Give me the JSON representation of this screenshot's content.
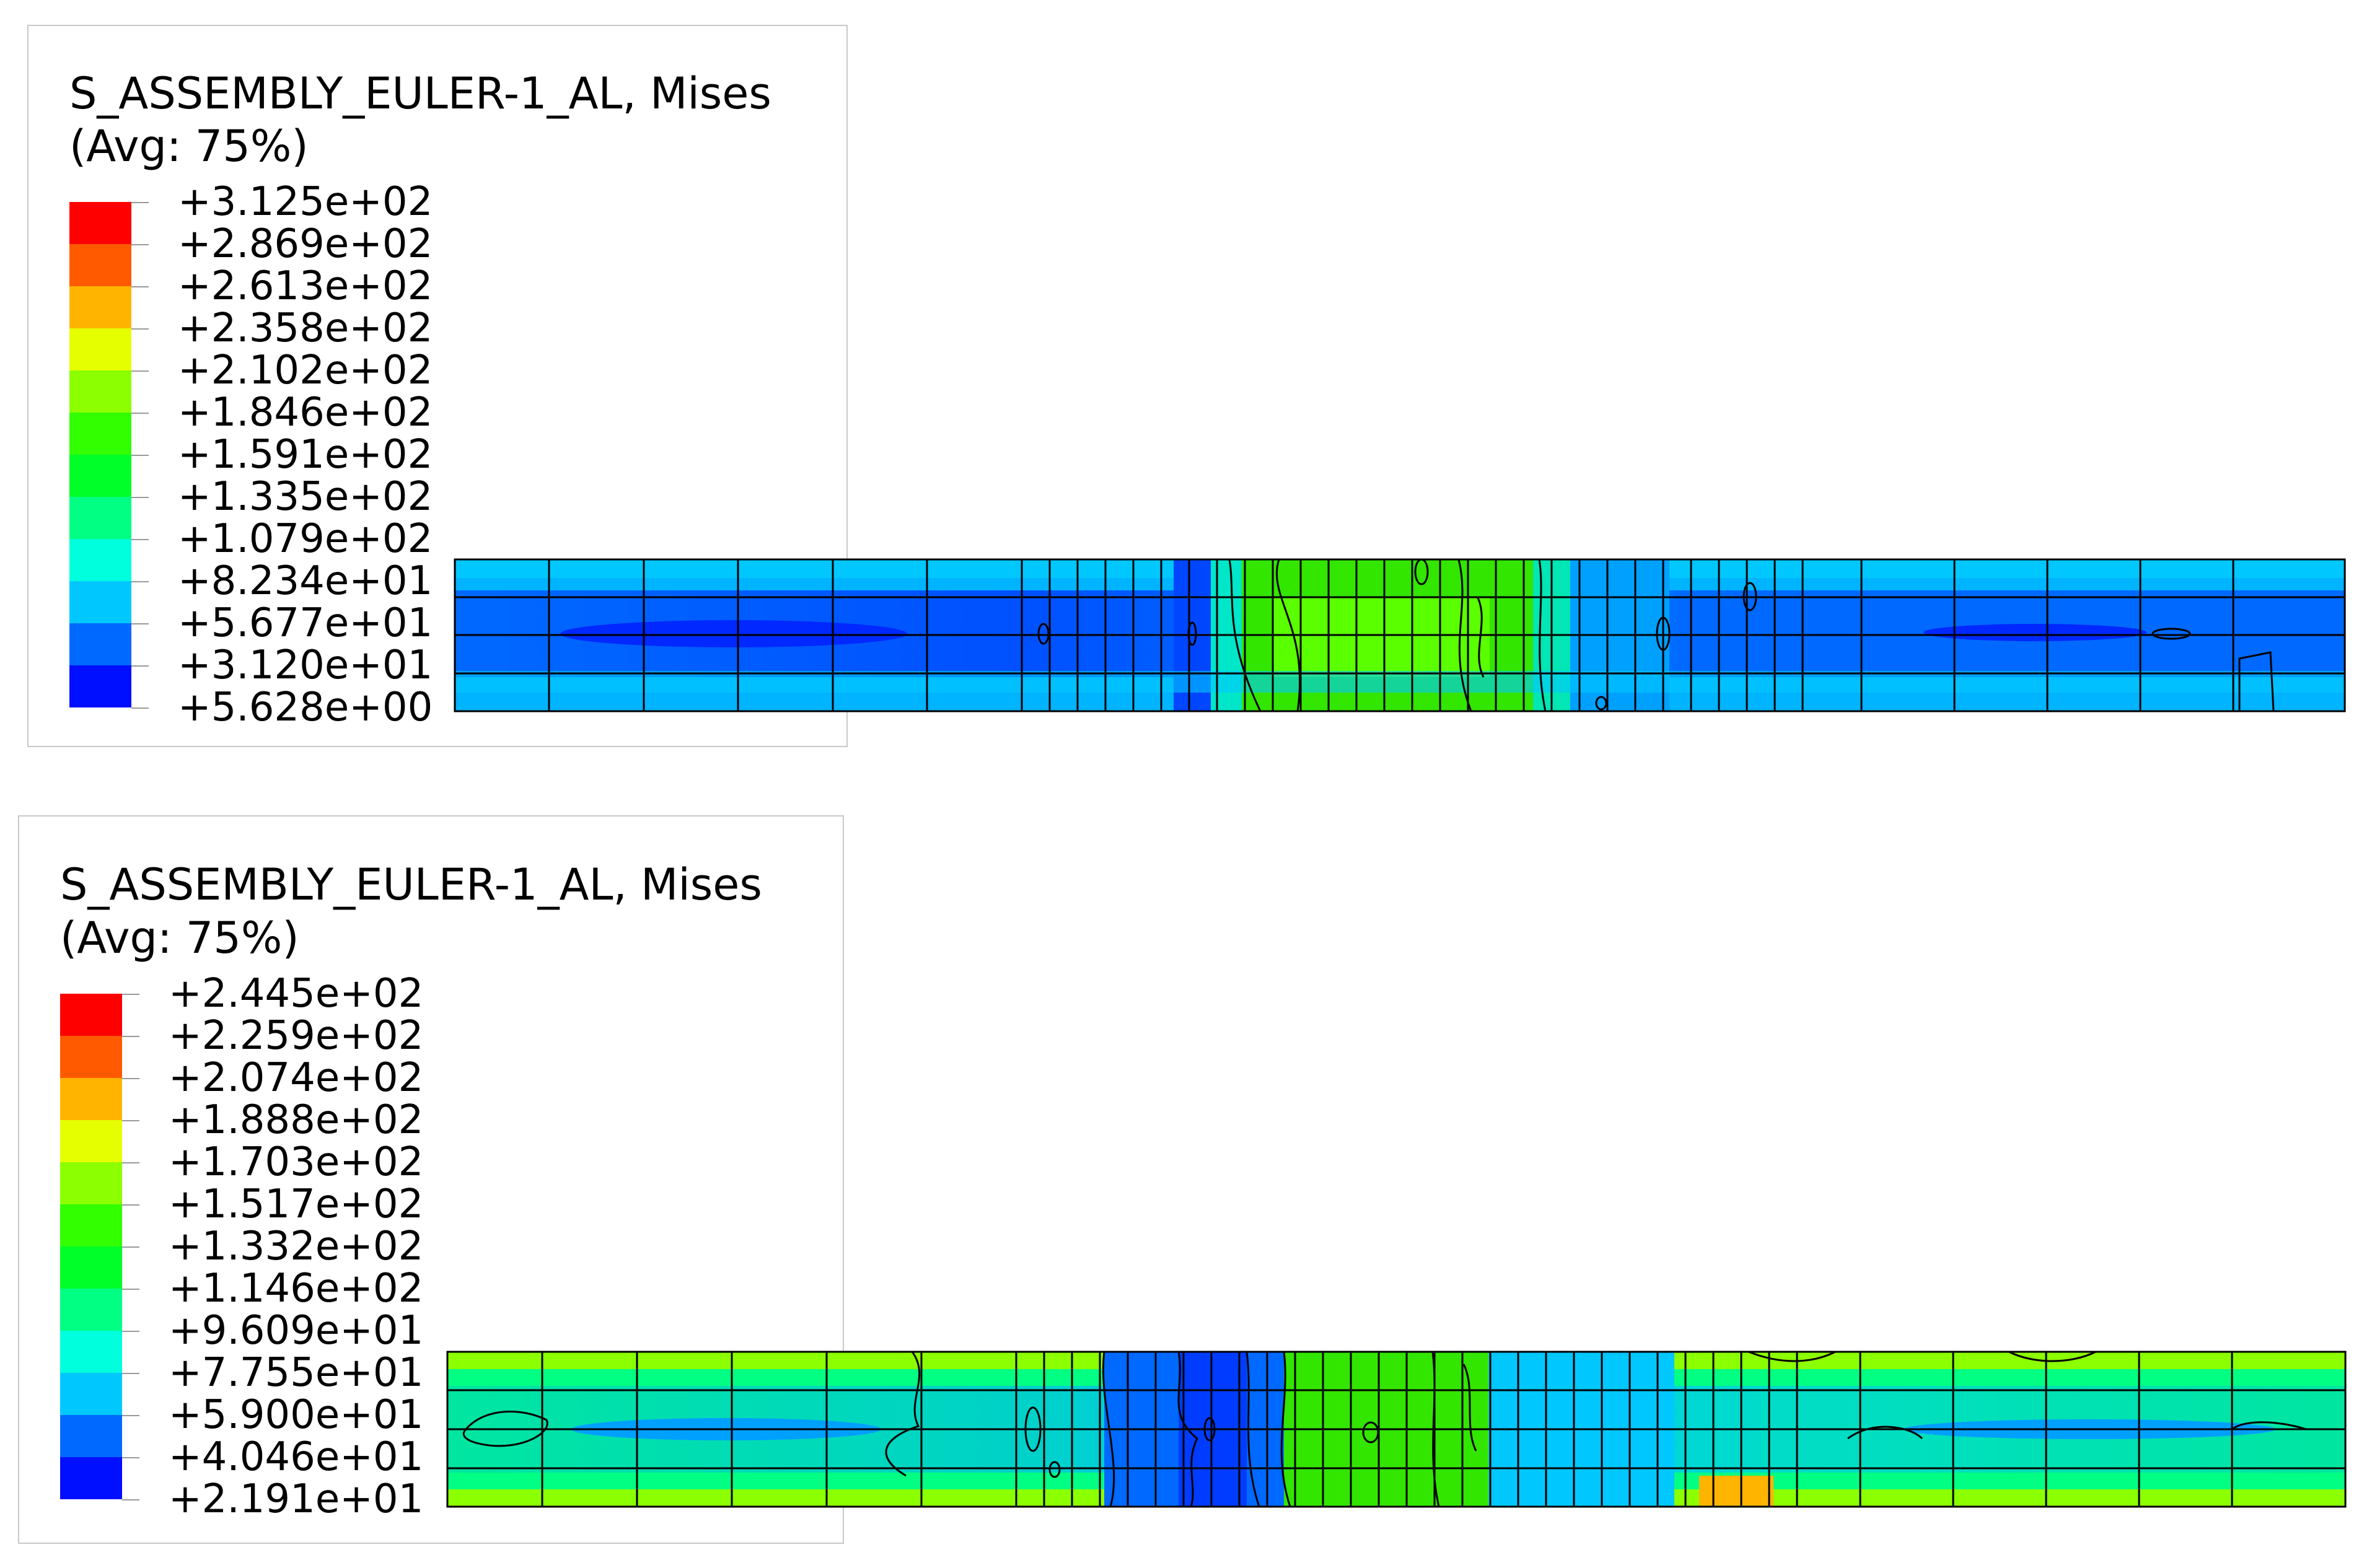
{
  "plots": [
    {
      "legend": {
        "title": "S_ASSEMBLY_EULER-1_AL, Mises",
        "subtitle": "(Avg: 75%)",
        "labels": [
          "+3.125e+02",
          "+2.869e+02",
          "+2.613e+02",
          "+2.358e+02",
          "+2.102e+02",
          "+1.846e+02",
          "+1.591e+02",
          "+1.335e+02",
          "+1.079e+02",
          "+8.234e+01",
          "+5.677e+01",
          "+3.120e+01",
          "+5.628e+00"
        ]
      }
    },
    {
      "legend": {
        "title": "S_ASSEMBLY_EULER-1_AL, Mises",
        "subtitle": "(Avg: 75%)",
        "labels": [
          "+2.445e+02",
          "+2.259e+02",
          "+2.074e+02",
          "+1.888e+02",
          "+1.703e+02",
          "+1.517e+02",
          "+1.332e+02",
          "+1.146e+02",
          "+9.609e+01",
          "+7.755e+01",
          "+5.900e+01",
          "+4.046e+01",
          "+2.191e+01"
        ]
      }
    }
  ],
  "colors": {
    "scale": [
      "#ff0000",
      "#ff5a00",
      "#ffb400",
      "#e6ff00",
      "#8cff00",
      "#32ff00",
      "#00ff28",
      "#00ff82",
      "#00ffdc",
      "#00c8ff",
      "#0069ff",
      "#000fff"
    ],
    "mesh_line": "#000000",
    "legend_border": "#c8c8c8"
  }
}
